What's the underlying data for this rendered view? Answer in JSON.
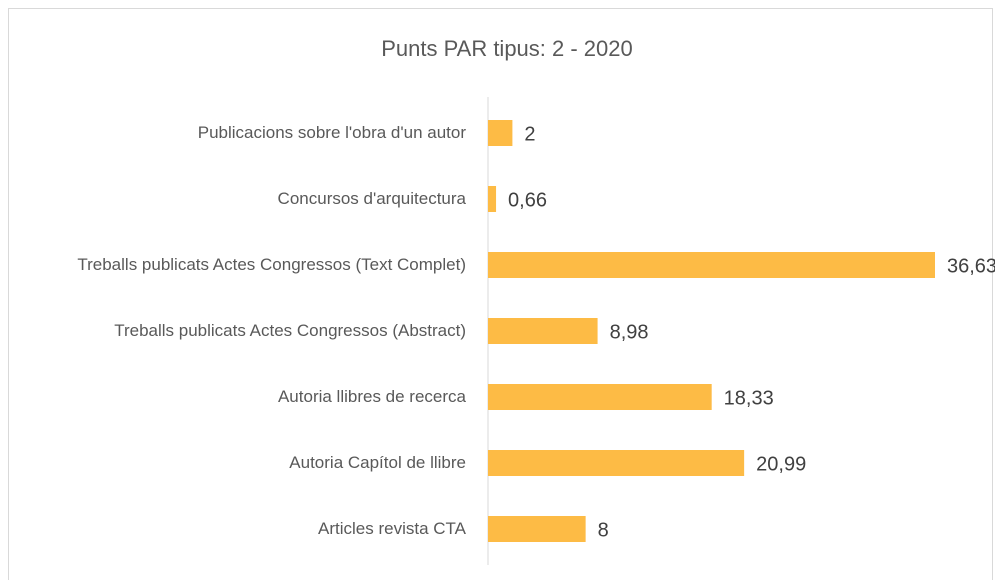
{
  "chart_data": {
    "type": "barh",
    "title": "Punts PAR tipus: 2 - 2020",
    "categories": [
      "Publicacions sobre l'obra d'un autor",
      "Concursos d'arquitectura",
      "Treballs publicats Actes Congressos (Text Complet)",
      "Treballs publicats Actes Congressos (Abstract)",
      "Autoria llibres de recerca",
      "Autoria Capítol de llibre",
      "Articles revista CTA"
    ],
    "values": [
      2,
      0.66,
      36.63,
      8.98,
      18.33,
      20.99,
      8
    ],
    "value_labels": [
      "2",
      "0,66",
      "36,63",
      "8,98",
      "18,33",
      "20,99",
      "8"
    ],
    "color": "#fdbb45"
  }
}
